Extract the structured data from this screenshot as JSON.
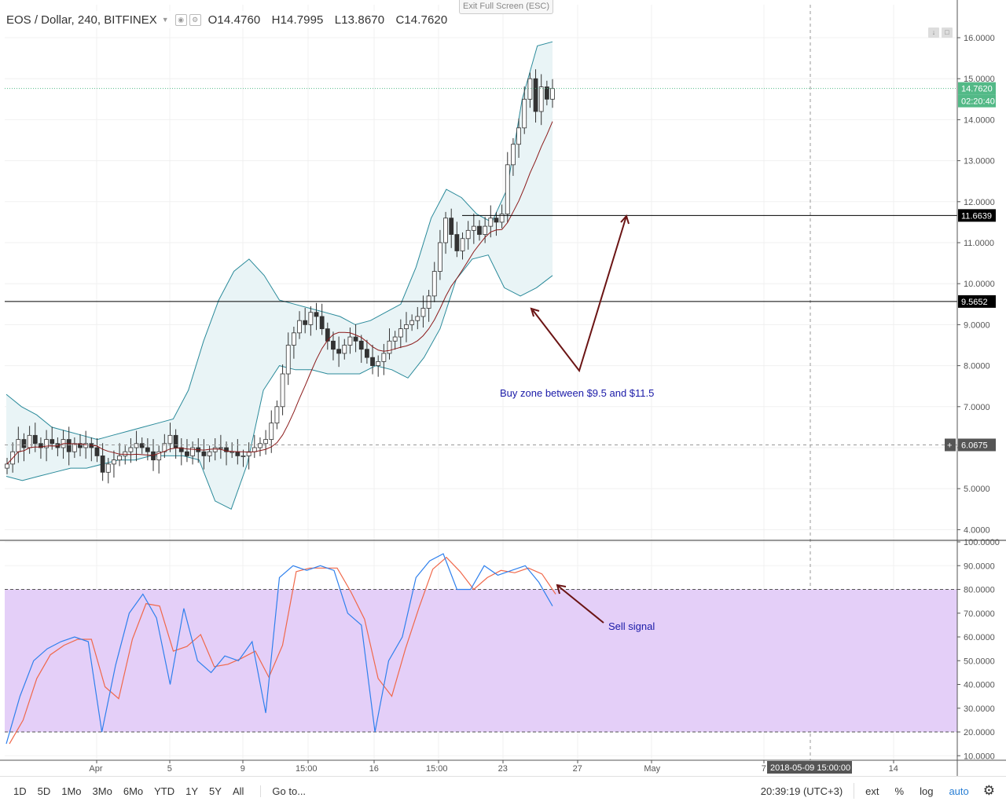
{
  "header": {
    "symbol": "EOS / Dollar, 240, BITFINEX",
    "open": "O14.4760",
    "high": "H14.7995",
    "low": "L13.8670",
    "close": "C14.7620"
  },
  "exit_fullscreen": "Exit Full Screen (ESC)",
  "price_axis": {
    "ticks": [
      "16.0000",
      "15.0000",
      "14.0000",
      "13.0000",
      "12.0000",
      "11.0000",
      "10.0000",
      "9.0000",
      "8.0000",
      "7.0000",
      "6.0000",
      "5.0000",
      "4.0000"
    ],
    "last_price": "14.7620",
    "countdown": "02:20:40",
    "crosshair_price": "6.0675",
    "crosshair_plus": "+"
  },
  "levels": [
    {
      "value": 11.6639,
      "label": "11.6639"
    },
    {
      "value": 9.5652,
      "label": "9.5652"
    }
  ],
  "osc_axis": {
    "ticks": [
      "100.0000",
      "90.0000",
      "80.0000",
      "70.0000",
      "60.0000",
      "50.0000",
      "40.0000",
      "30.0000",
      "20.0000",
      "10.0000"
    ]
  },
  "annotations": {
    "buy_zone": "Buy zone between $9.5 and $11.5",
    "sell_signal": "Sell signal"
  },
  "time_axis": {
    "labels": [
      "Apr",
      "5",
      "9",
      "15:00",
      "16",
      "15:00",
      "23",
      "27",
      "May",
      "7",
      "14"
    ],
    "crosshair_time": "2018-05-09 15:00:00"
  },
  "toolbar": {
    "ranges": [
      "1D",
      "5D",
      "1Mo",
      "3Mo",
      "6Mo",
      "YTD",
      "1Y",
      "5Y",
      "All"
    ],
    "goto": "Go to...",
    "clock": "20:39:19 (UTC+3)",
    "ext": "ext",
    "percent": "%",
    "log": "log",
    "auto": "auto",
    "settings_icon": "gear-icon"
  },
  "colors": {
    "up": "#53b987",
    "down": "#eb4d5c",
    "candle_body_up": "#ffffff",
    "candle_edge": "#333333",
    "bollinger": "#2a8a9a",
    "bollinger_fill": "#e9f4f6",
    "basis": "#8b1a1a",
    "stoch_k": "#2f80ed",
    "stoch_d": "#f0684a",
    "stoch_band": "#e4cff8",
    "arrow": "#6b1414",
    "annotation_text": "#1a1aa8"
  },
  "chart_data": {
    "type": "candlestick",
    "x": "4h bars, ~late Mar to Apr 25 2018",
    "ylim": [
      3.8,
      16.6
    ],
    "stoch_ylim": [
      9,
      100
    ],
    "candles_close_trace": [
      5.6,
      5.9,
      6.2,
      6.0,
      6.3,
      6.1,
      6.0,
      6.2,
      6.1,
      6.0,
      6.2,
      5.9,
      6.1,
      6.0,
      6.1,
      6.0,
      5.8,
      5.4,
      5.6,
      5.7,
      5.8,
      5.9,
      6.0,
      6.1,
      6.0,
      5.9,
      5.7,
      5.9,
      6.1,
      6.3,
      6.0,
      5.9,
      5.8,
      6.0,
      5.9,
      5.8,
      5.9,
      6.0,
      6.0,
      5.9,
      5.9,
      5.8,
      5.8,
      5.9,
      6.0,
      6.1,
      6.2,
      6.6,
      7.0,
      7.8,
      8.5,
      8.8,
      9.1,
      9.0,
      9.3,
      9.2,
      8.9,
      8.6,
      8.4,
      8.3,
      8.5,
      8.7,
      8.6,
      8.4,
      8.2,
      8.0,
      8.1,
      8.3,
      8.6,
      8.7,
      8.9,
      9.0,
      9.1,
      9.2,
      9.4,
      9.7,
      10.3,
      11.0,
      11.6,
      11.2,
      10.8,
      11.1,
      11.3,
      11.4,
      11.2,
      11.4,
      11.6,
      11.5,
      11.7,
      12.9,
      13.4,
      13.8,
      14.5,
      15.0,
      14.2,
      14.8,
      14.5,
      14.76
    ],
    "bollinger_upper_trace": [
      7.3,
      7.0,
      6.8,
      6.5,
      6.4,
      6.3,
      6.2,
      6.3,
      6.4,
      6.5,
      6.6,
      6.7,
      7.4,
      8.6,
      9.6,
      10.3,
      10.6,
      10.2,
      9.6,
      9.5,
      9.4,
      9.3,
      9.2,
      9.0,
      9.1,
      9.3,
      9.5,
      10.4,
      11.6,
      12.3,
      12.1,
      11.7,
      11.5,
      12.3,
      14.5,
      15.8,
      15.9
    ],
    "bollinger_lower_trace": [
      5.3,
      5.2,
      5.3,
      5.4,
      5.5,
      5.5,
      5.6,
      5.7,
      5.7,
      5.8,
      5.8,
      5.8,
      5.7,
      4.7,
      4.5,
      5.6,
      7.4,
      8.0,
      7.9,
      7.9,
      7.8,
      7.8,
      7.8,
      8.0,
      7.9,
      7.7,
      8.2,
      8.9,
      10.1,
      10.6,
      10.7,
      9.9,
      9.7,
      9.9,
      10.2
    ],
    "stoch_k_trace": [
      15,
      35,
      50,
      55,
      58,
      60,
      58,
      20,
      48,
      70,
      78,
      68,
      40,
      72,
      50,
      45,
      52,
      50,
      58,
      28,
      85,
      90,
      88,
      90,
      88,
      70,
      65,
      20,
      50,
      60,
      85,
      92,
      95,
      80,
      80,
      90,
      86,
      88,
      90,
      83,
      73
    ]
  }
}
